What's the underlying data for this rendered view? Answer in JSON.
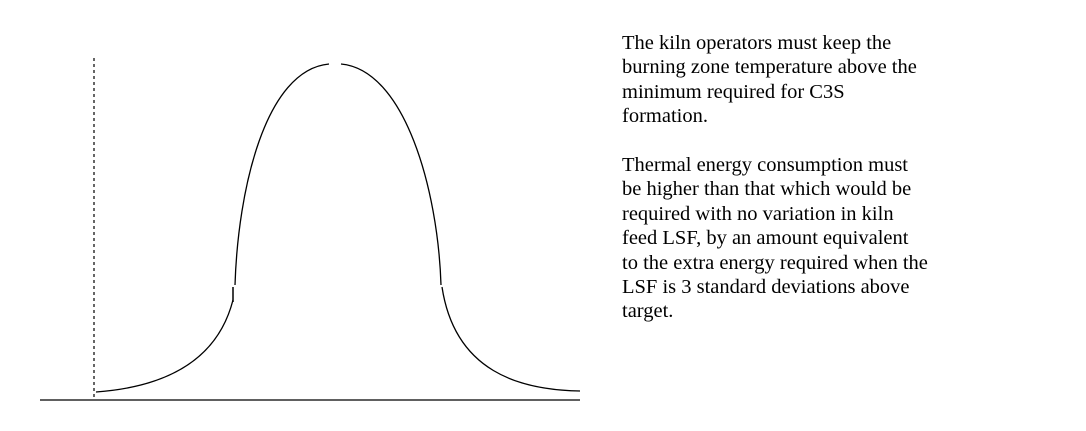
{
  "figure": {
    "type": "bell-curve-diagram",
    "line_color": "#000000"
  },
  "text": {
    "paragraph_1": "The kiln operators must keep the\nburning zone temperature above the\nminimum required for C3S\nformation.",
    "paragraph_2": "Thermal energy consumption must\nbe higher than that which would be\nrequired with no variation in kiln\nfeed LSF, by an amount equivalent\nto the extra energy required when the\nLSF is 3 standard deviations above\ntarget."
  }
}
